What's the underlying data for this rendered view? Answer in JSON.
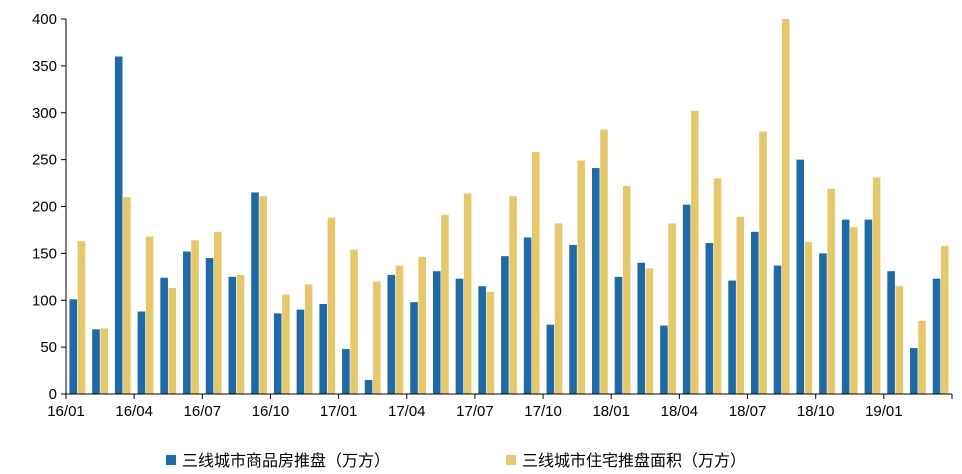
{
  "chart_data": {
    "type": "bar",
    "title": "",
    "xlabel": "",
    "ylabel": "",
    "ylim": [
      0,
      400
    ],
    "yticks": [
      0,
      50,
      100,
      150,
      200,
      250,
      300,
      350,
      400
    ],
    "grid": false,
    "legend_position": "bottom",
    "x_tick_labels": [
      "16/01",
      "16/04",
      "16/07",
      "16/10",
      "17/01",
      "17/04",
      "17/07",
      "17/10",
      "18/01",
      "18/04",
      "18/07",
      "18/10",
      "19/01"
    ],
    "series": [
      {
        "name": "三线城市商品房推盘（万方）",
        "color": "#1f6aa5",
        "values": [
          101,
          69,
          360,
          88,
          124,
          152,
          145,
          125,
          215,
          86,
          90,
          96,
          48,
          15,
          127,
          98,
          131,
          123,
          115,
          147,
          167,
          74,
          159,
          241,
          125,
          140,
          73,
          202,
          161,
          121,
          173,
          137,
          250,
          150,
          186,
          186,
          131,
          49,
          123
        ]
      },
      {
        "name": "三线城市住宅推盘面积（万方）",
        "color": "#e6c86c",
        "values": [
          163,
          70,
          210,
          168,
          113,
          164,
          173,
          127,
          211,
          106,
          117,
          188,
          154,
          120,
          137,
          146,
          191,
          214,
          109,
          211,
          258,
          182,
          249,
          282,
          222,
          134,
          182,
          302,
          230,
          189,
          280,
          400,
          162,
          219,
          178,
          231,
          115,
          78,
          158
        ]
      }
    ]
  }
}
